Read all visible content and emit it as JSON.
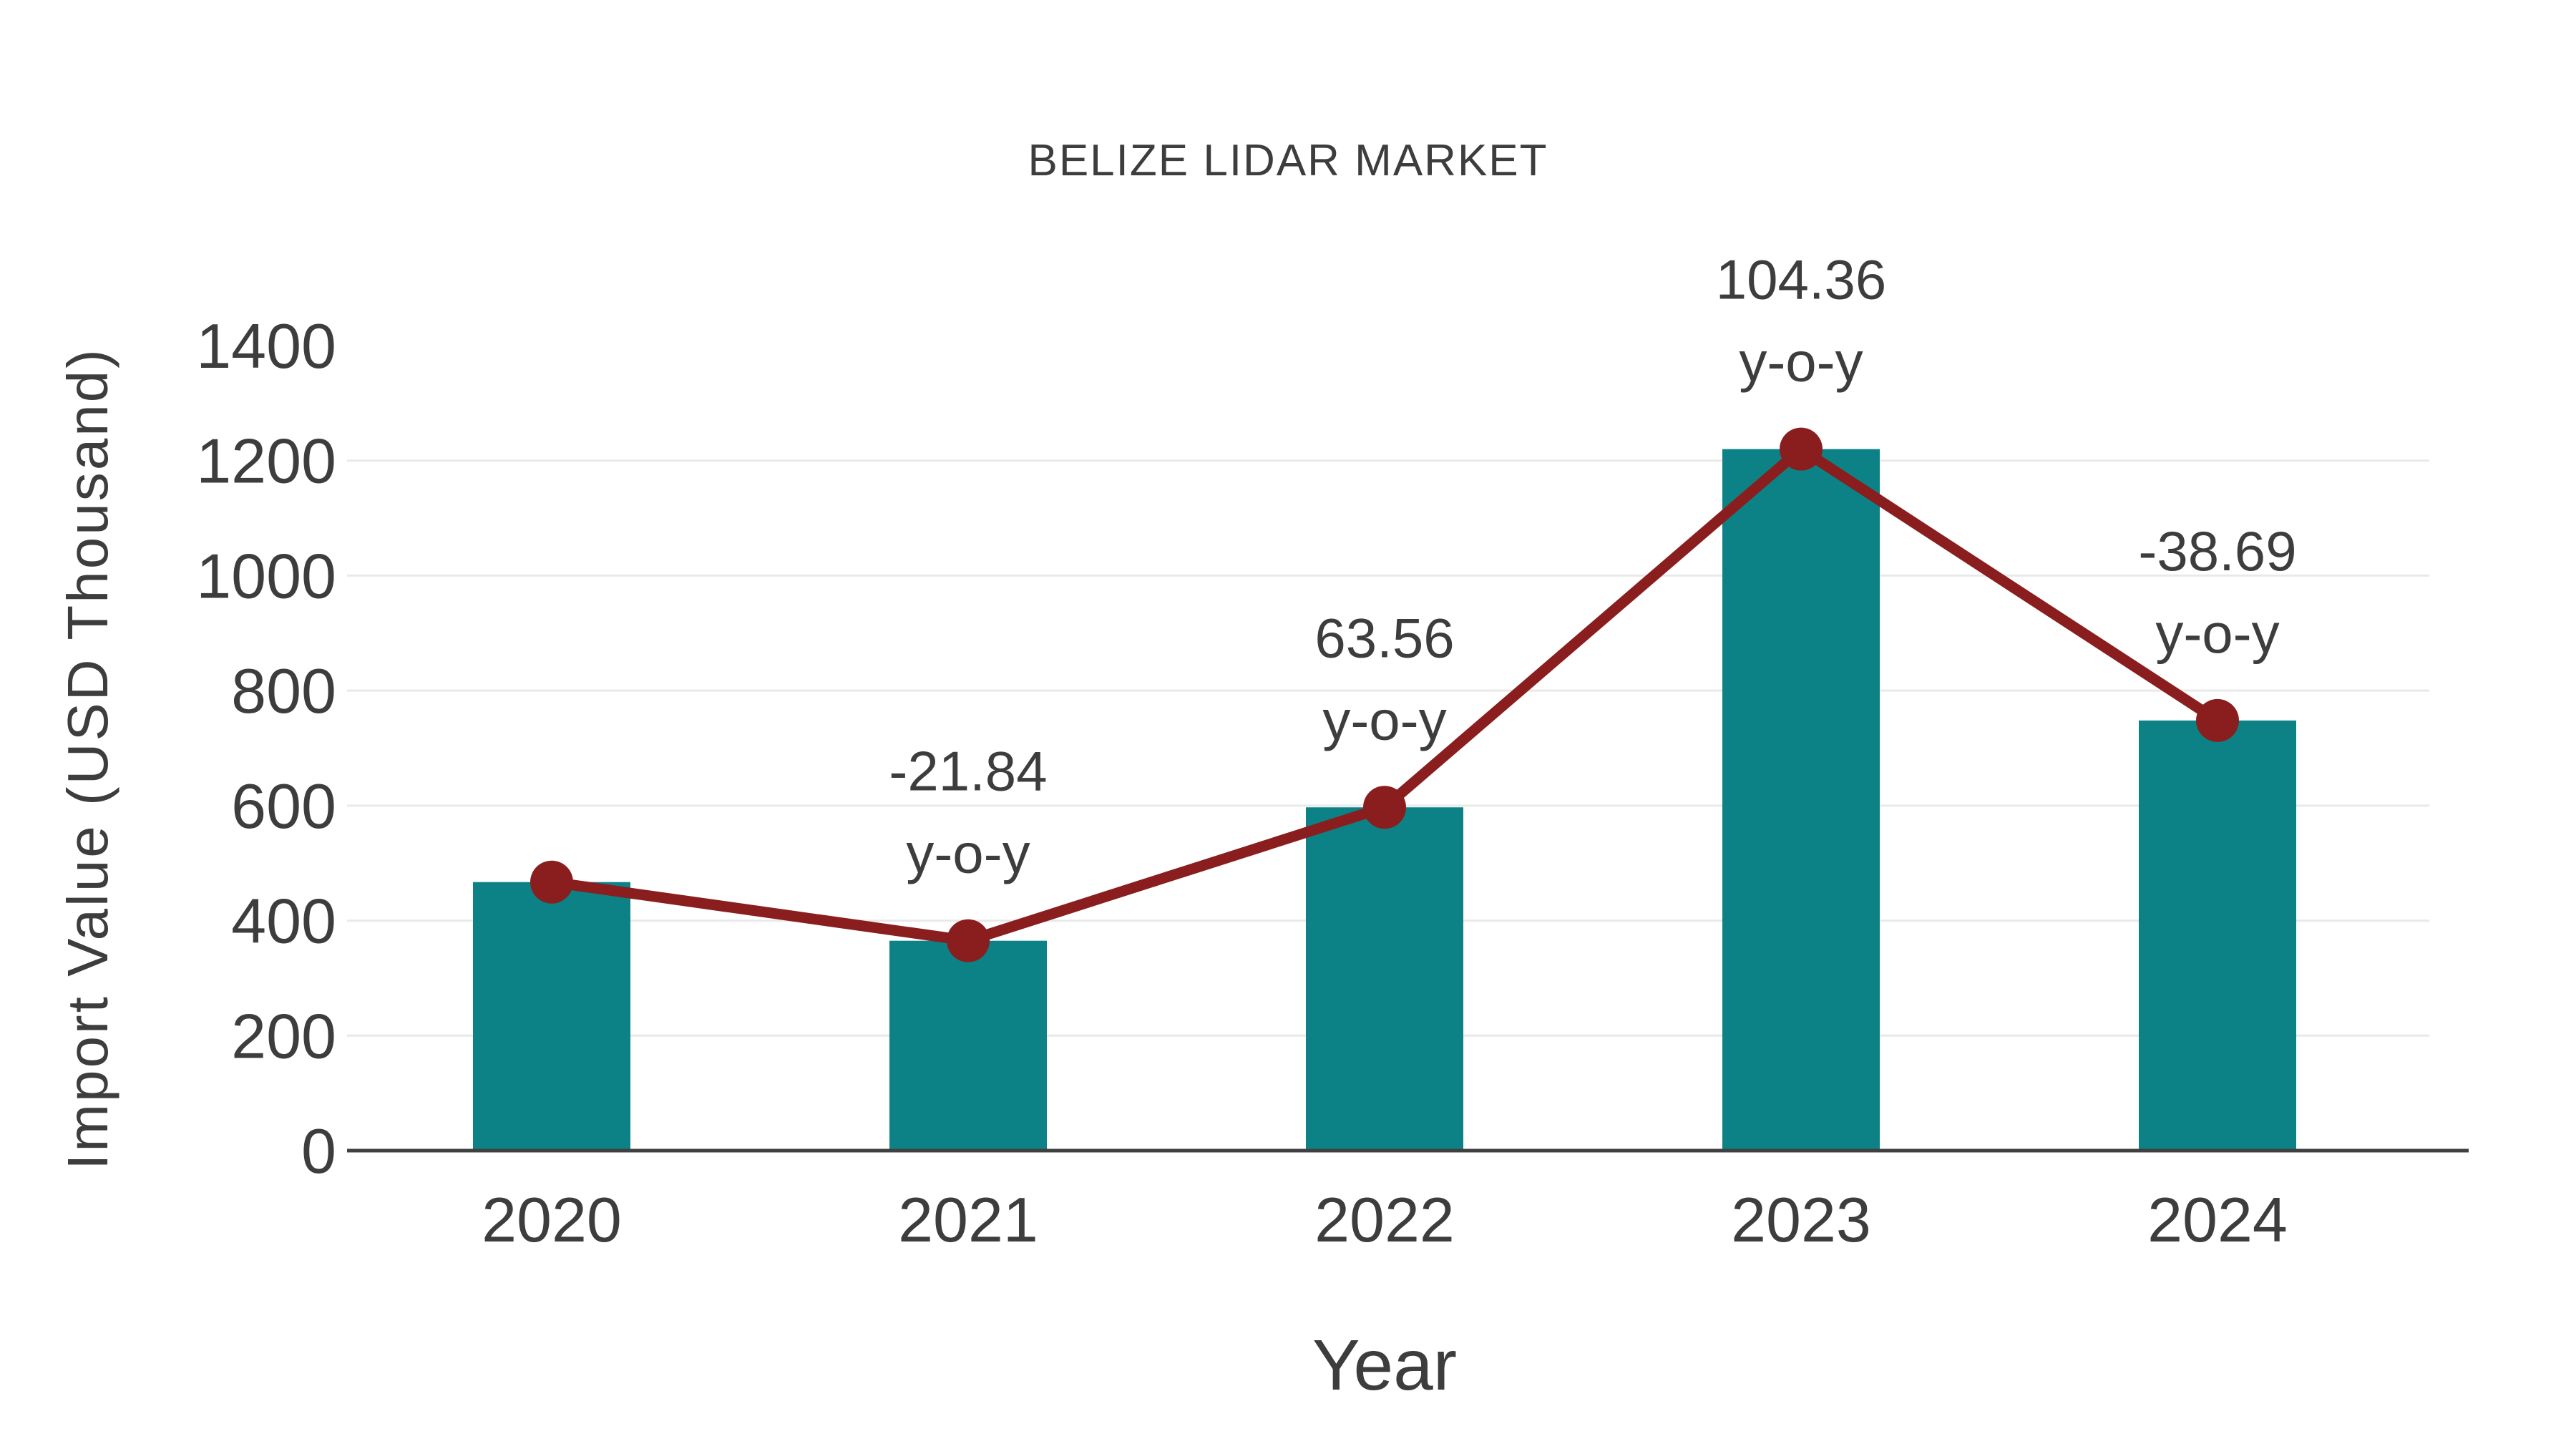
{
  "chart_data": {
    "type": "bar",
    "title": "BELIZE LIDAR MARKET",
    "xlabel": "Year",
    "ylabel": "Import Value (USD Thousand)",
    "categories": [
      "2020",
      "2021",
      "2022",
      "2023",
      "2024"
    ],
    "series": [
      {
        "name": "Import Value (USD Thousand)",
        "type": "bar",
        "values": [
          467,
          365,
          597,
          1220,
          748
        ]
      },
      {
        "name": "y-o-y change marker line",
        "type": "line",
        "connects": "bar_tops",
        "values": [
          467,
          365,
          597,
          1220,
          748
        ]
      }
    ],
    "yoy_percent": [
      null,
      -21.84,
      63.56,
      104.36,
      -38.69
    ],
    "annotations": [
      {
        "category": "2021",
        "value_label": "-21.84",
        "unit_label": "y-o-y"
      },
      {
        "category": "2022",
        "value_label": "63.56",
        "unit_label": "y-o-y"
      },
      {
        "category": "2023",
        "value_label": "104.36",
        "unit_label": "y-o-y"
      },
      {
        "category": "2024",
        "value_label": "-38.69",
        "unit_label": "y-o-y"
      }
    ],
    "y_ticks": [
      0,
      200,
      400,
      600,
      800,
      1000,
      1200,
      1400
    ],
    "ylim": [
      0,
      1400
    ],
    "grid": true,
    "legend": "none",
    "colors": {
      "bar": "#0c8286",
      "line": "#8a1e1e",
      "text": "#3d3d3d",
      "grid": "#e9e9e9",
      "axis": "#404040",
      "background": "#ffffff"
    }
  }
}
